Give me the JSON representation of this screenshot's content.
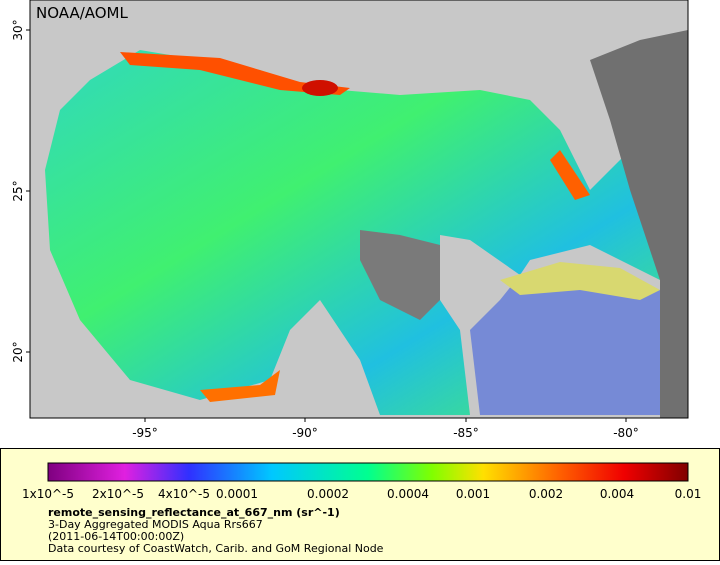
{
  "map": {
    "credit": "NOAA/AOML",
    "lat_labels": [
      "30°",
      "25°",
      "20°"
    ],
    "lon_labels": [
      "-95°",
      "-90°",
      "-85°",
      "-80°"
    ]
  },
  "legend": {
    "color_labels": [
      "1x10^-5",
      "2x10^-5",
      "4x10^-5",
      "0.0001",
      "0.0002",
      "0.0004",
      "0.001",
      "0.002",
      "0.004",
      "0.01"
    ],
    "variable": "remote_sensing_reflectance_at_667_nm (sr^-1)",
    "description": "3-Day Aggregated MODIS Aqua Rrs667",
    "time": "(2011-06-14T00:00:00Z)",
    "source": "Data courtesy of CoastWatch, Carib. and GoM Regional Node"
  }
}
